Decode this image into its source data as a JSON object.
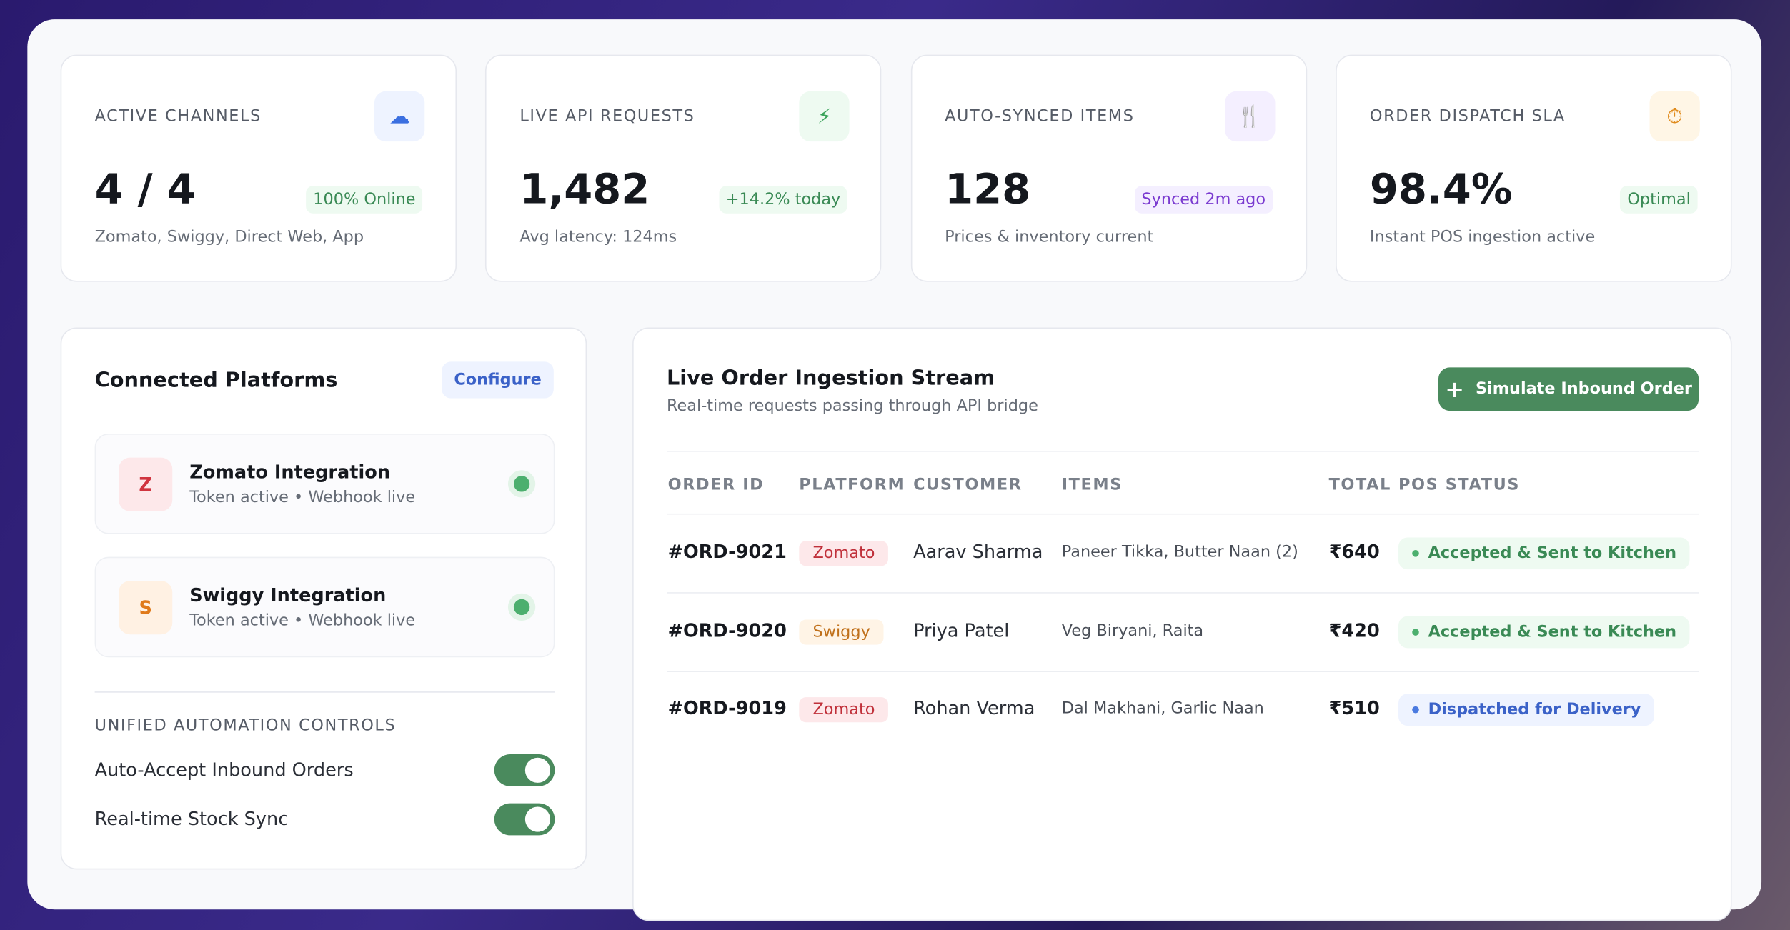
{
  "stats": [
    {
      "label": "ACTIVE CHANNELS",
      "value": "4 / 4",
      "badge": "100% Online",
      "note": "Zomato, Swiggy, Direct Web, App"
    },
    {
      "label": "LIVE API REQUESTS",
      "value": "1,482",
      "badge": "+14.2% today",
      "note": "Avg latency: 124ms"
    },
    {
      "label": "AUTO-SYNCED ITEMS",
      "value": "128",
      "badge": "Synced 2m ago",
      "note": "Prices & inventory current"
    },
    {
      "label": "ORDER DISPATCH SLA",
      "value": "98.4%",
      "badge": "Optimal",
      "note": "Instant POS ingestion active"
    }
  ],
  "platforms": {
    "title": "Connected Platforms",
    "action": "Configure",
    "items": [
      {
        "initial": "Z",
        "name": "Zomato Integration",
        "status": "Token active • Webhook live"
      },
      {
        "initial": "S",
        "name": "Swiggy Integration",
        "status": "Token active • Webhook live"
      }
    ]
  },
  "controls": {
    "title": "UNIFIED AUTOMATION CONTROLS",
    "items": [
      {
        "label": "Auto-Accept Inbound Orders",
        "on": true
      },
      {
        "label": "Real-time Stock Sync",
        "on": true
      }
    ]
  },
  "stream": {
    "title": "Live Order Ingestion Stream",
    "subtitle": "Real-time requests passing through API bridge",
    "button": "Simulate Inbound Order",
    "columns": [
      "ORDER ID",
      "PLATFORM",
      "CUSTOMER",
      "ITEMS",
      "TOTAL",
      "POS STATUS"
    ],
    "rows": [
      [
        "#ORD-9021",
        "Zomato",
        "Aarav Sharma",
        "Paneer Tikka, Butter Naan (2)",
        "₹640",
        "Accepted & Sent to Kitchen"
      ],
      [
        "#ORD-9020",
        "Swiggy",
        "Priya Patel",
        "Veg Biryani, Raita",
        "₹420",
        "Accepted & Sent to Kitchen"
      ],
      [
        "#ORD-9019",
        "Zomato",
        "Rohan Verma",
        "Dal Makhani, Garlic Naan",
        "₹510",
        "Dispatched for Delivery"
      ]
    ]
  }
}
